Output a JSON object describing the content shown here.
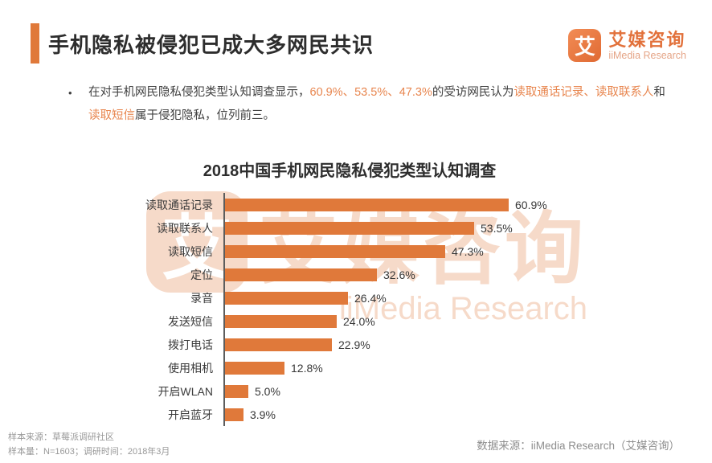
{
  "header": {
    "title": "手机隐私被侵犯已成大多网民共识",
    "logo": {
      "icon": "iimedia-logo-icon",
      "icon_char": "艾",
      "name_cn": "艾媒咨询",
      "name_en": "iiMedia Research"
    }
  },
  "bullet": {
    "marker": "•",
    "segments": [
      {
        "text": "在对手机网民隐私侵犯类型认知调查显示，",
        "highlight": false
      },
      {
        "text": "60.9%、53.5%、47.3%",
        "highlight": true
      },
      {
        "text": "的受访网民认为",
        "highlight": false
      },
      {
        "text": "读取通话记录、读取联系人",
        "highlight": true
      },
      {
        "text": "和",
        "highlight": false
      },
      {
        "text": "读取短信",
        "highlight": true
      },
      {
        "text": "属于侵犯隐私，位列前三。",
        "highlight": false
      }
    ]
  },
  "chart_data": {
    "type": "bar",
    "orientation": "horizontal",
    "title": "2018中国手机网民隐私侵犯类型认知调查",
    "categories": [
      "读取通话记录",
      "读取联系人",
      "读取短信",
      "定位",
      "录音",
      "发送短信",
      "拨打电话",
      "使用相机",
      "开启WLAN",
      "开启蓝牙"
    ],
    "values": [
      60.9,
      53.5,
      47.3,
      32.6,
      26.4,
      24.0,
      22.9,
      12.8,
      5.0,
      3.9
    ],
    "value_labels": [
      "60.9%",
      "53.5%",
      "47.3%",
      "32.6%",
      "26.4%",
      "24.0%",
      "22.9%",
      "12.8%",
      "5.0%",
      "3.9%"
    ],
    "xlabel": "",
    "ylabel": "",
    "xlim": [
      0,
      65
    ],
    "grid": false,
    "legend": null,
    "bar_color": "#E0793A"
  },
  "watermark": {
    "icon_char": "艾",
    "text_cn": "艾媒咨询",
    "text_en": "iiMedia Research"
  },
  "footer": {
    "left_line1": "样本来源：草莓派调研社区",
    "left_line2": "样本量：N=1603；调研时间：2018年3月",
    "right": "数据来源：iiMedia Research（艾媒咨询）"
  },
  "colors": {
    "accent": "#E0793A",
    "highlight_text": "#E8864F",
    "title_text": "#2D2D2D",
    "body_text": "#3F3F3F"
  }
}
